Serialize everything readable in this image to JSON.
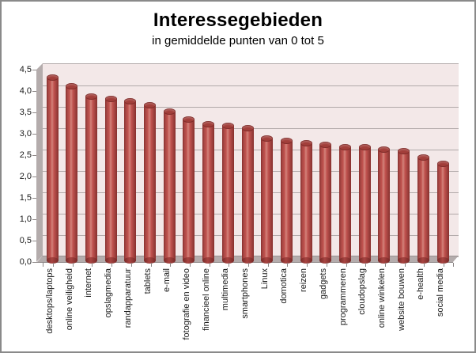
{
  "chart_data": {
    "type": "bar",
    "style": "3d-cylinder",
    "title": "Interessegebieden",
    "subtitle": "in gemiddelde punten van 0 tot 5",
    "categories": [
      "desktops/laptops",
      "online veiligheid",
      "internet",
      "opslagmedia",
      "randapparatuur",
      "tablets",
      "e-mail",
      "fotografie en video",
      "financieel online",
      "multimedia",
      "smartphones",
      "Linux",
      "domotica",
      "reizen",
      "gadgets",
      "programmeren",
      "cloudopslag",
      "online winkelen",
      "website bouwen",
      "e-health",
      "social media"
    ],
    "values": [
      4.35,
      4.15,
      3.9,
      3.85,
      3.8,
      3.7,
      3.55,
      3.35,
      3.25,
      3.2,
      3.15,
      2.9,
      2.85,
      2.8,
      2.75,
      2.7,
      2.7,
      2.65,
      2.6,
      2.45,
      2.3
    ],
    "xlabel": "",
    "ylabel": "",
    "ylim": [
      0,
      4.5
    ],
    "ytick_step": 0.5,
    "y_tick_labels": [
      "0,0",
      "0,5",
      "1,0",
      "1,5",
      "2,0",
      "2,5",
      "3,0",
      "3,5",
      "4,0",
      "4,5"
    ],
    "grid": true,
    "legend_position": "none",
    "x_label_rotation": "vertical-bottom-to-top"
  },
  "colors": {
    "bar_main": "#c0524e",
    "bar_dark": "#872f2d",
    "bar_highlight": "#d3837b",
    "bar_cap": "#a23e3a",
    "plot_wall": "#f3e8e8",
    "gridline": "#b1a9a9",
    "floor": "#b4acac",
    "frame_border": "#8a8a8a",
    "text": "#000000"
  }
}
